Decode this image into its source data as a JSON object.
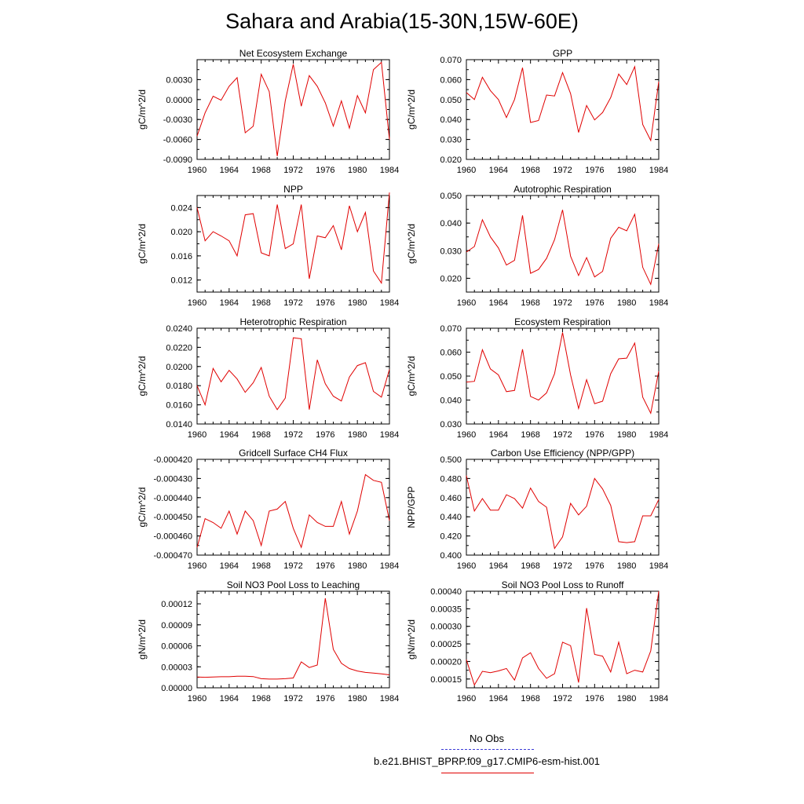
{
  "title": "Sahara and Arabia(15-30N,15W-60E)",
  "colors": {
    "series": "#e00000",
    "obs": "#3b3bd6",
    "axis": "#000000"
  },
  "legend": {
    "obs_label": "No Obs",
    "model_label": "b.e21.BHIST_BPRP.f09_g17.CMIP6-esm-hist.001"
  },
  "chart_data": [
    {
      "type": "line",
      "title": "Net Ecosystem Exchange",
      "ylabel": "gC/m^2/d",
      "xlim": [
        1960,
        1984
      ],
      "ylim": [
        -0.009,
        0.006
      ],
      "xticks": [
        "1960",
        "1964",
        "1968",
        "1972",
        "1976",
        "1980",
        "1984"
      ],
      "yticks": [
        "-0.0090",
        "-0.0060",
        "-0.0030",
        "0.0000",
        "0.0030"
      ],
      "x": [
        1960,
        1961,
        1962,
        1963,
        1964,
        1965,
        1966,
        1967,
        1968,
        1969,
        1970,
        1971,
        1972,
        1973,
        1974,
        1975,
        1976,
        1977,
        1978,
        1979,
        1980,
        1981,
        1982,
        1983,
        1984
      ],
      "values": [
        -0.0055,
        -0.002,
        0.0005,
        -0.0001,
        0.002,
        0.0033,
        -0.005,
        -0.004,
        0.0038,
        0.0012,
        -0.0085,
        -0.0002,
        0.0053,
        -0.001,
        0.0036,
        0.002,
        -0.0005,
        -0.004,
        -0.0002,
        -0.0043,
        0.0006,
        -0.002,
        0.0045,
        0.0056,
        -0.006
      ]
    },
    {
      "type": "line",
      "title": "GPP",
      "ylabel": "gC/m^2/d",
      "xlim": [
        1960,
        1984
      ],
      "ylim": [
        0.02,
        0.07
      ],
      "xticks": [
        "1960",
        "1964",
        "1968",
        "1972",
        "1976",
        "1980",
        "1984"
      ],
      "yticks": [
        "0.020",
        "0.030",
        "0.040",
        "0.050",
        "0.060",
        "0.070"
      ],
      "x": [
        1960,
        1961,
        1962,
        1963,
        1964,
        1965,
        1966,
        1967,
        1968,
        1969,
        1970,
        1971,
        1972,
        1973,
        1974,
        1975,
        1976,
        1977,
        1978,
        1979,
        1980,
        1981,
        1982,
        1983,
        1984
      ],
      "values": [
        0.0535,
        0.05,
        0.0612,
        0.0545,
        0.05,
        0.041,
        0.05,
        0.066,
        0.0385,
        0.0395,
        0.0523,
        0.0518,
        0.0635,
        0.053,
        0.0335,
        0.047,
        0.0398,
        0.0435,
        0.051,
        0.0628,
        0.0575,
        0.0665,
        0.0375,
        0.0295,
        0.059
      ]
    },
    {
      "type": "line",
      "title": "NPP",
      "ylabel": "gC/m^2/d",
      "xlim": [
        1960,
        1984
      ],
      "ylim": [
        0.01,
        0.026
      ],
      "xticks": [
        "1960",
        "1964",
        "1968",
        "1972",
        "1976",
        "1980",
        "1984"
      ],
      "yticks": [
        "0.012",
        "0.016",
        "0.020",
        "0.024"
      ],
      "x": [
        1960,
        1961,
        1962,
        1963,
        1964,
        1965,
        1966,
        1967,
        1968,
        1969,
        1970,
        1971,
        1972,
        1973,
        1974,
        1975,
        1976,
        1977,
        1978,
        1979,
        1980,
        1981,
        1982,
        1983,
        1984
      ],
      "values": [
        0.024,
        0.0185,
        0.02,
        0.0193,
        0.0185,
        0.016,
        0.0228,
        0.023,
        0.0165,
        0.016,
        0.0245,
        0.0172,
        0.018,
        0.0245,
        0.0122,
        0.0193,
        0.019,
        0.021,
        0.017,
        0.0243,
        0.02,
        0.0232,
        0.0135,
        0.0115,
        0.0265
      ]
    },
    {
      "type": "line",
      "title": "Autotrophic Respiration",
      "ylabel": "gC/m^2/d",
      "xlim": [
        1960,
        1984
      ],
      "ylim": [
        0.015,
        0.05
      ],
      "xticks": [
        "1960",
        "1964",
        "1968",
        "1972",
        "1976",
        "1980",
        "1984"
      ],
      "yticks": [
        "0.020",
        "0.030",
        "0.040",
        "0.050"
      ],
      "x": [
        1960,
        1961,
        1962,
        1963,
        1964,
        1965,
        1966,
        1967,
        1968,
        1969,
        1970,
        1971,
        1972,
        1973,
        1974,
        1975,
        1976,
        1977,
        1978,
        1979,
        1980,
        1981,
        1982,
        1983,
        1984
      ],
      "values": [
        0.0295,
        0.0315,
        0.0412,
        0.035,
        0.031,
        0.0248,
        0.0265,
        0.0428,
        0.0218,
        0.0232,
        0.0272,
        0.034,
        0.0448,
        0.028,
        0.021,
        0.0275,
        0.0205,
        0.0225,
        0.0345,
        0.0385,
        0.0372,
        0.0432,
        0.024,
        0.0178,
        0.0325
      ]
    },
    {
      "type": "line",
      "title": "Heterotrophic Respiration",
      "ylabel": "gC/m^2/d",
      "xlim": [
        1960,
        1984
      ],
      "ylim": [
        0.014,
        0.024
      ],
      "xticks": [
        "1960",
        "1964",
        "1968",
        "1972",
        "1976",
        "1980",
        "1984"
      ],
      "yticks": [
        "0.0140",
        "0.0160",
        "0.0180",
        "0.0200",
        "0.0220",
        "0.0240"
      ],
      "x": [
        1960,
        1961,
        1962,
        1963,
        1964,
        1965,
        1966,
        1967,
        1968,
        1969,
        1970,
        1971,
        1972,
        1973,
        1974,
        1975,
        1976,
        1977,
        1978,
        1979,
        1980,
        1981,
        1982,
        1983,
        1984
      ],
      "values": [
        0.018,
        0.016,
        0.0198,
        0.0184,
        0.0196,
        0.0187,
        0.0173,
        0.0183,
        0.0199,
        0.0169,
        0.0155,
        0.0167,
        0.023,
        0.0229,
        0.0155,
        0.0207,
        0.0182,
        0.0169,
        0.0164,
        0.0189,
        0.0201,
        0.0204,
        0.0174,
        0.0168,
        0.0197
      ]
    },
    {
      "type": "line",
      "title": "Ecosystem Respiration",
      "ylabel": "gC/m^2/d",
      "xlim": [
        1960,
        1984
      ],
      "ylim": [
        0.03,
        0.07
      ],
      "xticks": [
        "1960",
        "1964",
        "1968",
        "1972",
        "1976",
        "1980",
        "1984"
      ],
      "yticks": [
        "0.030",
        "0.040",
        "0.050",
        "0.060",
        "0.070"
      ],
      "x": [
        1960,
        1961,
        1962,
        1963,
        1964,
        1965,
        1966,
        1967,
        1968,
        1969,
        1970,
        1971,
        1972,
        1973,
        1974,
        1975,
        1976,
        1977,
        1978,
        1979,
        1980,
        1981,
        1982,
        1983,
        1984
      ],
      "values": [
        0.0475,
        0.0478,
        0.061,
        0.053,
        0.0505,
        0.0435,
        0.044,
        0.0612,
        0.0415,
        0.04,
        0.043,
        0.051,
        0.0682,
        0.0505,
        0.0365,
        0.0485,
        0.0385,
        0.0395,
        0.051,
        0.0572,
        0.0575,
        0.0638,
        0.0412,
        0.0345,
        0.052
      ]
    },
    {
      "type": "line",
      "title": "Gridcell Surface CH4 Flux",
      "ylabel": "gC/m^2/d",
      "xlim": [
        1960,
        1984
      ],
      "ylim": [
        -0.00047,
        -0.00042
      ],
      "xticks": [
        "1960",
        "1964",
        "1968",
        "1972",
        "1976",
        "1980",
        "1984"
      ],
      "yticks": [
        "-0.000470",
        "-0.000460",
        "-0.000450",
        "-0.000440",
        "-0.000430",
        "-0.000420"
      ],
      "x": [
        1960,
        1961,
        1962,
        1963,
        1964,
        1965,
        1966,
        1967,
        1968,
        1969,
        1970,
        1971,
        1972,
        1973,
        1974,
        1975,
        1976,
        1977,
        1978,
        1979,
        1980,
        1981,
        1982,
        1983,
        1984
      ],
      "values": [
        -0.000466,
        -0.000451,
        -0.000453,
        -0.000456,
        -0.000447,
        -0.000459,
        -0.000447,
        -0.000452,
        -0.000465,
        -0.000447,
        -0.000446,
        -0.000442,
        -0.000456,
        -0.000466,
        -0.000449,
        -0.000453,
        -0.000455,
        -0.000455,
        -0.000442,
        -0.000459,
        -0.000447,
        -0.000428,
        -0.000431,
        -0.000432,
        -0.000452
      ]
    },
    {
      "type": "line",
      "title": "Carbon Use Efficiency (NPP/GPP)",
      "ylabel": "NPP/GPP",
      "xlim": [
        1960,
        1984
      ],
      "ylim": [
        0.4,
        0.5
      ],
      "xticks": [
        "1960",
        "1964",
        "1968",
        "1972",
        "1976",
        "1980",
        "1984"
      ],
      "yticks": [
        "0.400",
        "0.420",
        "0.440",
        "0.460",
        "0.480",
        "0.500"
      ],
      "x": [
        1960,
        1961,
        1962,
        1963,
        1964,
        1965,
        1966,
        1967,
        1968,
        1969,
        1970,
        1971,
        1972,
        1973,
        1974,
        1975,
        1976,
        1977,
        1978,
        1979,
        1980,
        1981,
        1982,
        1983,
        1984
      ],
      "values": [
        0.483,
        0.446,
        0.459,
        0.447,
        0.447,
        0.463,
        0.459,
        0.449,
        0.47,
        0.456,
        0.45,
        0.407,
        0.419,
        0.454,
        0.442,
        0.451,
        0.48,
        0.469,
        0.452,
        0.414,
        0.413,
        0.414,
        0.441,
        0.441,
        0.458
      ]
    },
    {
      "type": "line",
      "title": "Soil NO3 Pool Loss to Leaching",
      "ylabel": "gN/m^2/d",
      "xlim": [
        1960,
        1984
      ],
      "ylim": [
        0.0,
        0.000138
      ],
      "xticks": [
        "1960",
        "1964",
        "1968",
        "1972",
        "1976",
        "1980",
        "1984"
      ],
      "yticks": [
        "0.00000",
        "0.00003",
        "0.00006",
        "0.00009",
        "0.00012"
      ],
      "x": [
        1960,
        1961,
        1962,
        1963,
        1964,
        1965,
        1966,
        1967,
        1968,
        1969,
        1970,
        1971,
        1972,
        1973,
        1974,
        1975,
        1976,
        1977,
        1978,
        1979,
        1980,
        1981,
        1982,
        1983,
        1984
      ],
      "values": [
        1.55e-05,
        1.5e-05,
        1.55e-05,
        1.58e-05,
        1.58e-05,
        1.65e-05,
        1.65e-05,
        1.6e-05,
        1.3e-05,
        1.25e-05,
        1.25e-05,
        1.3e-05,
        1.4e-05,
        3.7e-05,
        2.9e-05,
        3.25e-05,
        0.000128,
        5.5e-05,
        3.5e-05,
        2.75e-05,
        2.4e-05,
        2.2e-05,
        2.1e-05,
        2e-05,
        1.85e-05
      ]
    },
    {
      "type": "line",
      "title": "Soil NO3 Pool Loss to Runoff",
      "ylabel": "gN/m^2/d",
      "xlim": [
        1960,
        1984
      ],
      "ylim": [
        0.000125,
        0.0004
      ],
      "xticks": [
        "1960",
        "1964",
        "1968",
        "1972",
        "1976",
        "1980",
        "1984"
      ],
      "yticks": [
        "0.00015",
        "0.00020",
        "0.00025",
        "0.00030",
        "0.00035",
        "0.00040"
      ],
      "x": [
        1960,
        1961,
        1962,
        1963,
        1964,
        1965,
        1966,
        1967,
        1968,
        1969,
        1970,
        1971,
        1972,
        1973,
        1974,
        1975,
        1976,
        1977,
        1978,
        1979,
        1980,
        1981,
        1982,
        1983,
        1984
      ],
      "values": [
        0.000205,
        0.000133,
        0.000172,
        0.000168,
        0.000173,
        0.00018,
        0.000147,
        0.00021,
        0.000225,
        0.00018,
        0.000152,
        0.000165,
        0.000255,
        0.000245,
        0.00014,
        0.000352,
        0.00022,
        0.000215,
        0.00017,
        0.000255,
        0.000165,
        0.000175,
        0.00017,
        0.00023,
        0.0004
      ]
    }
  ]
}
